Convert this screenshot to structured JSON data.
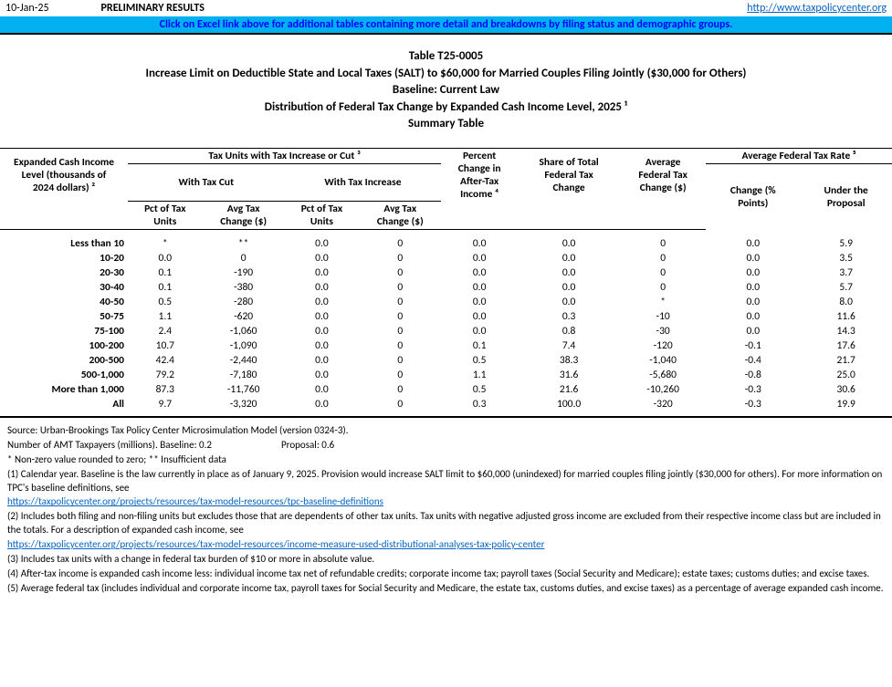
{
  "header": {
    "date": "10-Jan-25",
    "prelim": "PRELIMINARY RESULTS",
    "link_text": "http://www.taxpolicycenter.org",
    "banner": "Click on Excel link above for additional tables containing more detail and breakdowns by filing status and demographic groups."
  },
  "title": {
    "table_id": "Table T25-0005",
    "line1": "Increase Limit on Deductible State and Local Taxes (SALT) to $60,000 for Married Couples Filing Jointly ($30,000 for Others)",
    "line2": "Baseline: Current Law",
    "line3": "Distribution of Federal Tax Change by Expanded Cash Income Level, 2025 ¹",
    "line4": "Summary Table"
  },
  "columns": {
    "rowhdr_l1": "Expanded Cash Income",
    "rowhdr_l2": "Level (thousands of",
    "rowhdr_l3": "2024 dollars) ²",
    "group_tax_units": "Tax Units with Tax Increase or Cut ³",
    "with_cut": "With Tax Cut",
    "with_inc": "With Tax Increase",
    "pct_units": "Pct of Tax",
    "pct_units2": "Units",
    "avg_change": "Avg Tax",
    "avg_change2": "Change ($)",
    "pct_after_l1": "Percent",
    "pct_after_l2": "Change in",
    "pct_after_l3": "After-Tax",
    "pct_after_l4": "Income ⁴",
    "share_l1": "Share of Total",
    "share_l2": "Federal Tax",
    "share_l3": "Change",
    "avgfed_l1": "Average",
    "avgfed_l2": "Federal Tax",
    "avgfed_l3": "Change ($)",
    "rate_group": "Average Federal Tax Rate ⁵",
    "rate_chg_l1": "Change (%",
    "rate_chg_l2": "Points)",
    "rate_under_l1": "Under the",
    "rate_under_l2": "Proposal"
  },
  "rows": [
    {
      "label": "Less than 10",
      "cut_pct": "*",
      "cut_avg": "**",
      "inc_pct": "0.0",
      "inc_avg": "0",
      "pct_ati": "0.0",
      "share": "0.0",
      "avg_fed": "0",
      "rate_chg": "0.0",
      "rate_under": "5.9"
    },
    {
      "label": "10-20",
      "cut_pct": "0.0",
      "cut_avg": "0",
      "inc_pct": "0.0",
      "inc_avg": "0",
      "pct_ati": "0.0",
      "share": "0.0",
      "avg_fed": "0",
      "rate_chg": "0.0",
      "rate_under": "3.5"
    },
    {
      "label": "20-30",
      "cut_pct": "0.1",
      "cut_avg": "-190",
      "inc_pct": "0.0",
      "inc_avg": "0",
      "pct_ati": "0.0",
      "share": "0.0",
      "avg_fed": "0",
      "rate_chg": "0.0",
      "rate_under": "3.7"
    },
    {
      "label": "30-40",
      "cut_pct": "0.1",
      "cut_avg": "-380",
      "inc_pct": "0.0",
      "inc_avg": "0",
      "pct_ati": "0.0",
      "share": "0.0",
      "avg_fed": "0",
      "rate_chg": "0.0",
      "rate_under": "5.7"
    },
    {
      "label": "40-50",
      "cut_pct": "0.5",
      "cut_avg": "-280",
      "inc_pct": "0.0",
      "inc_avg": "0",
      "pct_ati": "0.0",
      "share": "0.0",
      "avg_fed": "*",
      "rate_chg": "0.0",
      "rate_under": "8.0"
    },
    {
      "label": "50-75",
      "cut_pct": "1.1",
      "cut_avg": "-620",
      "inc_pct": "0.0",
      "inc_avg": "0",
      "pct_ati": "0.0",
      "share": "0.3",
      "avg_fed": "-10",
      "rate_chg": "0.0",
      "rate_under": "11.6"
    },
    {
      "label": "75-100",
      "cut_pct": "2.4",
      "cut_avg": "-1,060",
      "inc_pct": "0.0",
      "inc_avg": "0",
      "pct_ati": "0.0",
      "share": "0.8",
      "avg_fed": "-30",
      "rate_chg": "0.0",
      "rate_under": "14.3"
    },
    {
      "label": "100-200",
      "cut_pct": "10.7",
      "cut_avg": "-1,090",
      "inc_pct": "0.0",
      "inc_avg": "0",
      "pct_ati": "0.1",
      "share": "7.4",
      "avg_fed": "-120",
      "rate_chg": "-0.1",
      "rate_under": "17.6"
    },
    {
      "label": "200-500",
      "cut_pct": "42.4",
      "cut_avg": "-2,440",
      "inc_pct": "0.0",
      "inc_avg": "0",
      "pct_ati": "0.5",
      "share": "38.3",
      "avg_fed": "-1,040",
      "rate_chg": "-0.4",
      "rate_under": "21.7"
    },
    {
      "label": "500-1,000",
      "cut_pct": "79.2",
      "cut_avg": "-7,180",
      "inc_pct": "0.0",
      "inc_avg": "0",
      "pct_ati": "1.1",
      "share": "31.6",
      "avg_fed": "-5,680",
      "rate_chg": "-0.8",
      "rate_under": "25.0"
    },
    {
      "label": "More than 1,000",
      "cut_pct": "87.3",
      "cut_avg": "-11,760",
      "inc_pct": "0.0",
      "inc_avg": "0",
      "pct_ati": "0.5",
      "share": "21.6",
      "avg_fed": "-10,260",
      "rate_chg": "-0.3",
      "rate_under": "30.6"
    },
    {
      "label": "All",
      "cut_pct": "9.7",
      "cut_avg": "-3,320",
      "inc_pct": "0.0",
      "inc_avg": "0",
      "pct_ati": "0.3",
      "share": "100.0",
      "avg_fed": "-320",
      "rate_chg": "-0.3",
      "rate_under": "19.9"
    }
  ],
  "notes": {
    "source": "Source: Urban-Brookings Tax Policy Center Microsimulation Model (version 0324-3).",
    "amt_label": "Number of AMT Taxpayers (millions).  Baseline: 0.2",
    "amt_proposal": "Proposal: 0.6",
    "asterisk": "* Non-zero value rounded to zero; ** Insufficient data",
    "n1": "(1) Calendar year. Baseline is the law currently in place as of January 9, 2025. Provision would increase SALT limit to $60,000 (unindexed) for married couples filing jointly ($30,000 for others). For more information on TPC's baseline definitions, see",
    "link1": "https://taxpolicycenter.org/projects/resources/tax-model-resources/tpc-baseline-definitions",
    "n2": "(2) Includes both filing and non-filing units but excludes those that are dependents of other tax units. Tax units with negative adjusted gross income are excluded from their respective income class but are included in the totals. For a description of expanded cash income, see",
    "link2": "https://taxpolicycenter.org/projects/resources/tax-model-resources/income-measure-used-distributional-analyses-tax-policy-center",
    "n3": "(3) Includes tax units with a change in federal tax burden of $10 or more in absolute value.",
    "n4": "(4) After-tax income is expanded cash income less: individual income tax net of refundable credits; corporate income tax; payroll taxes (Social Security and Medicare); estate taxes; customs duties; and excise taxes.",
    "n5": "(5) Average federal tax (includes individual and corporate income tax, payroll taxes for Social Security and Medicare, the estate tax, customs duties, and excise taxes) as a percentage of average expanded cash income."
  }
}
